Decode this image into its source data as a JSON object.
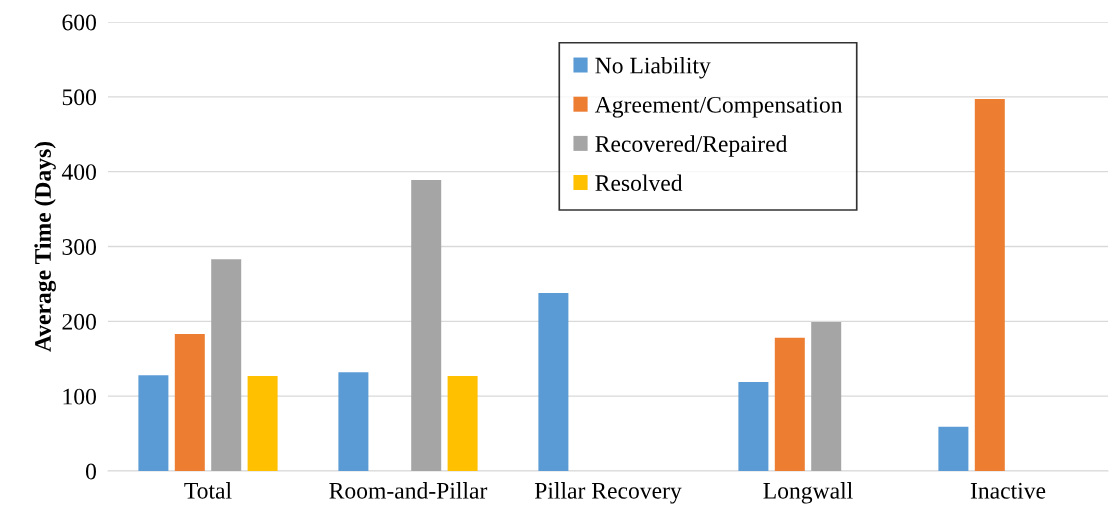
{
  "chart_data": {
    "type": "bar",
    "ylabel": "Average Time (Days)",
    "categories": [
      "Total",
      "Room-and-Pillar",
      "Pillar Recovery",
      "Longwall",
      "Inactive"
    ],
    "series": [
      {
        "name": "No Liability",
        "color": "#5b9bd5",
        "values": [
          128,
          132,
          238,
          119,
          59
        ]
      },
      {
        "name": "Agreement/Compensation",
        "color": "#ed7d31",
        "values": [
          183,
          null,
          null,
          178,
          497
        ]
      },
      {
        "name": "Recovered/Repaired",
        "color": "#a5a5a5",
        "values": [
          283,
          389,
          null,
          199,
          null
        ]
      },
      {
        "name": "Resolved",
        "color": "#ffc000",
        "values": [
          127,
          127,
          null,
          null,
          null
        ]
      }
    ],
    "ylim": [
      0,
      600
    ],
    "yticks": [
      0,
      100,
      200,
      300,
      400,
      500,
      600
    ],
    "grid": "y",
    "legend": "top"
  }
}
